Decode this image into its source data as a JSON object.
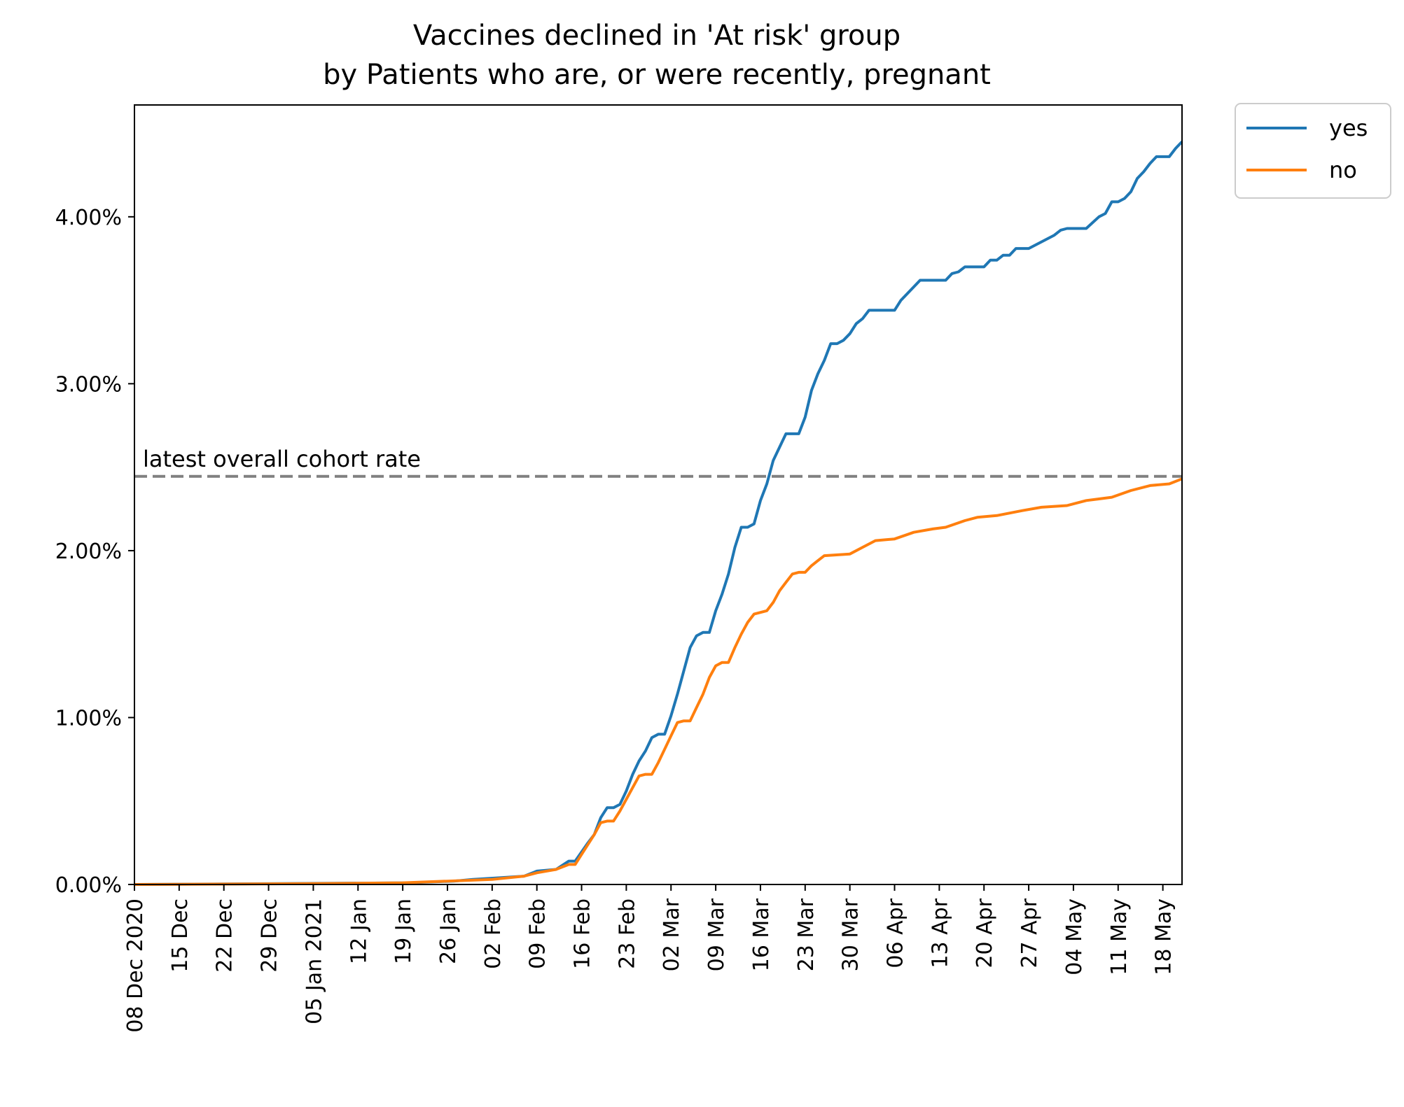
{
  "chart_data": {
    "type": "line",
    "title": [
      "Vaccines declined in 'At risk' group",
      "by Patients who are, or were recently, pregnant"
    ],
    "xlabel": "",
    "ylabel": "",
    "ylim": [
      0,
      0.0467
    ],
    "xlim": [
      "2020-12-08",
      "2021-05-21"
    ],
    "grid": false,
    "legend_position": "outside-top-right",
    "x_tick_labels": [
      "08 Dec 2020",
      "15 Dec",
      "22 Dec",
      "29 Dec",
      "05 Jan 2021",
      "12 Jan",
      "19 Jan",
      "26 Jan",
      "02 Feb",
      "09 Feb",
      "16 Feb",
      "23 Feb",
      "02 Mar",
      "09 Mar",
      "16 Mar",
      "23 Mar",
      "30 Mar",
      "06 Apr",
      "13 Apr",
      "20 Apr",
      "27 Apr",
      "04 May",
      "11 May",
      "18 May"
    ],
    "x_tick_dates": [
      "2020-12-08",
      "2020-12-15",
      "2020-12-22",
      "2020-12-29",
      "2021-01-05",
      "2021-01-12",
      "2021-01-19",
      "2021-01-26",
      "2021-02-02",
      "2021-02-09",
      "2021-02-16",
      "2021-02-23",
      "2021-03-02",
      "2021-03-09",
      "2021-03-16",
      "2021-03-23",
      "2021-03-30",
      "2021-04-06",
      "2021-04-13",
      "2021-04-20",
      "2021-04-27",
      "2021-05-04",
      "2021-05-11",
      "2021-05-18"
    ],
    "y_ticks": [
      0,
      0.01,
      0.02,
      0.03,
      0.04
    ],
    "y_tick_labels": [
      "0.00%",
      "1.00%",
      "2.00%",
      "3.00%",
      "4.00%"
    ],
    "reference_line": {
      "y": 0.02445,
      "label": "latest overall cohort rate",
      "color": "#808080"
    },
    "series": [
      {
        "name": "yes",
        "color": "#1f77b4",
        "points": [
          [
            "2020-12-08",
            0.0
          ],
          [
            "2021-01-20",
            0.0001
          ],
          [
            "2021-01-27",
            0.0002
          ],
          [
            "2021-01-30",
            0.0003
          ],
          [
            "2021-02-03",
            0.0004
          ],
          [
            "2021-02-07",
            0.0005
          ],
          [
            "2021-02-09",
            0.0008
          ],
          [
            "2021-02-12",
            0.0009
          ],
          [
            "2021-02-14",
            0.0014
          ],
          [
            "2021-02-15",
            0.0014
          ],
          [
            "2021-02-17",
            0.0025
          ],
          [
            "2021-02-18",
            0.003
          ],
          [
            "2021-02-19",
            0.004
          ],
          [
            "2021-02-20",
            0.0046
          ],
          [
            "2021-02-21",
            0.0046
          ],
          [
            "2021-02-22",
            0.0048
          ],
          [
            "2021-02-23",
            0.0056
          ],
          [
            "2021-02-24",
            0.0066
          ],
          [
            "2021-02-25",
            0.0074
          ],
          [
            "2021-02-26",
            0.008
          ],
          [
            "2021-02-27",
            0.0088
          ],
          [
            "2021-02-28",
            0.009
          ],
          [
            "2021-03-01",
            0.009
          ],
          [
            "2021-03-02",
            0.0101
          ],
          [
            "2021-03-03",
            0.0114
          ],
          [
            "2021-03-04",
            0.0128
          ],
          [
            "2021-03-05",
            0.0142
          ],
          [
            "2021-03-06",
            0.0149
          ],
          [
            "2021-03-07",
            0.0151
          ],
          [
            "2021-03-08",
            0.0151
          ],
          [
            "2021-03-09",
            0.0164
          ],
          [
            "2021-03-10",
            0.0174
          ],
          [
            "2021-03-11",
            0.0186
          ],
          [
            "2021-03-12",
            0.0202
          ],
          [
            "2021-03-13",
            0.0214
          ],
          [
            "2021-03-14",
            0.0214
          ],
          [
            "2021-03-15",
            0.0216
          ],
          [
            "2021-03-16",
            0.023
          ],
          [
            "2021-03-17",
            0.024
          ],
          [
            "2021-03-18",
            0.0254
          ],
          [
            "2021-03-19",
            0.0262
          ],
          [
            "2021-03-20",
            0.027
          ],
          [
            "2021-03-21",
            0.027
          ],
          [
            "2021-03-22",
            0.027
          ],
          [
            "2021-03-23",
            0.028
          ],
          [
            "2021-03-24",
            0.0296
          ],
          [
            "2021-03-25",
            0.0306
          ],
          [
            "2021-03-26",
            0.0314
          ],
          [
            "2021-03-27",
            0.0324
          ],
          [
            "2021-03-28",
            0.0324
          ],
          [
            "2021-03-29",
            0.0326
          ],
          [
            "2021-03-30",
            0.033
          ],
          [
            "2021-03-31",
            0.0336
          ],
          [
            "2021-04-01",
            0.0339
          ],
          [
            "2021-04-02",
            0.0344
          ],
          [
            "2021-04-06",
            0.0344
          ],
          [
            "2021-04-07",
            0.035
          ],
          [
            "2021-04-10",
            0.0362
          ],
          [
            "2021-04-14",
            0.0362
          ],
          [
            "2021-04-15",
            0.0366
          ],
          [
            "2021-04-16",
            0.0367
          ],
          [
            "2021-04-17",
            0.037
          ],
          [
            "2021-04-20",
            0.037
          ],
          [
            "2021-04-21",
            0.0374
          ],
          [
            "2021-04-22",
            0.0374
          ],
          [
            "2021-04-23",
            0.0377
          ],
          [
            "2021-04-24",
            0.0377
          ],
          [
            "2021-04-25",
            0.0381
          ],
          [
            "2021-04-27",
            0.0381
          ],
          [
            "2021-05-01",
            0.0389
          ],
          [
            "2021-05-02",
            0.0392
          ],
          [
            "2021-05-03",
            0.0393
          ],
          [
            "2021-05-06",
            0.0393
          ],
          [
            "2021-05-08",
            0.04
          ],
          [
            "2021-05-09",
            0.0402
          ],
          [
            "2021-05-10",
            0.0409
          ],
          [
            "2021-05-11",
            0.0409
          ],
          [
            "2021-05-12",
            0.0411
          ],
          [
            "2021-05-13",
            0.0415
          ],
          [
            "2021-05-14",
            0.0423
          ],
          [
            "2021-05-15",
            0.0427
          ],
          [
            "2021-05-16",
            0.0432
          ],
          [
            "2021-05-17",
            0.0436
          ],
          [
            "2021-05-19",
            0.0436
          ],
          [
            "2021-05-20",
            0.0441
          ],
          [
            "2021-05-21",
            0.0445
          ]
        ]
      },
      {
        "name": "no",
        "color": "#ff7f0e",
        "points": [
          [
            "2020-12-08",
            0.0
          ],
          [
            "2021-01-05",
            5e-05
          ],
          [
            "2021-01-19",
            0.0001
          ],
          [
            "2021-01-26",
            0.0002
          ],
          [
            "2021-02-02",
            0.0003
          ],
          [
            "2021-02-07",
            0.0005
          ],
          [
            "2021-02-09",
            0.0007
          ],
          [
            "2021-02-12",
            0.0009
          ],
          [
            "2021-02-14",
            0.0012
          ],
          [
            "2021-02-15",
            0.0012
          ],
          [
            "2021-02-16",
            0.0018
          ],
          [
            "2021-02-17",
            0.0024
          ],
          [
            "2021-02-18",
            0.003
          ],
          [
            "2021-02-19",
            0.0037
          ],
          [
            "2021-02-20",
            0.0038
          ],
          [
            "2021-02-21",
            0.0038
          ],
          [
            "2021-02-22",
            0.0044
          ],
          [
            "2021-02-23",
            0.0051
          ],
          [
            "2021-02-24",
            0.0058
          ],
          [
            "2021-02-25",
            0.0065
          ],
          [
            "2021-02-26",
            0.0066
          ],
          [
            "2021-02-27",
            0.0066
          ],
          [
            "2021-02-28",
            0.0073
          ],
          [
            "2021-03-01",
            0.0081
          ],
          [
            "2021-03-02",
            0.0089
          ],
          [
            "2021-03-03",
            0.0097
          ],
          [
            "2021-03-04",
            0.0098
          ],
          [
            "2021-03-05",
            0.0098
          ],
          [
            "2021-03-06",
            0.0106
          ],
          [
            "2021-03-07",
            0.0114
          ],
          [
            "2021-03-08",
            0.0124
          ],
          [
            "2021-03-09",
            0.0131
          ],
          [
            "2021-03-10",
            0.0133
          ],
          [
            "2021-03-11",
            0.0133
          ],
          [
            "2021-03-12",
            0.0142
          ],
          [
            "2021-03-13",
            0.015
          ],
          [
            "2021-03-14",
            0.0157
          ],
          [
            "2021-03-15",
            0.0162
          ],
          [
            "2021-03-16",
            0.0163
          ],
          [
            "2021-03-17",
            0.0164
          ],
          [
            "2021-03-18",
            0.0169
          ],
          [
            "2021-03-19",
            0.0176
          ],
          [
            "2021-03-20",
            0.0181
          ],
          [
            "2021-03-21",
            0.0186
          ],
          [
            "2021-03-22",
            0.0187
          ],
          [
            "2021-03-23",
            0.0187
          ],
          [
            "2021-03-24",
            0.0191
          ],
          [
            "2021-03-25",
            0.0194
          ],
          [
            "2021-03-26",
            0.0197
          ],
          [
            "2021-03-30",
            0.0198
          ],
          [
            "2021-04-01",
            0.0202
          ],
          [
            "2021-04-03",
            0.0206
          ],
          [
            "2021-04-06",
            0.0207
          ],
          [
            "2021-04-09",
            0.0211
          ],
          [
            "2021-04-12",
            0.0213
          ],
          [
            "2021-04-14",
            0.0214
          ],
          [
            "2021-04-17",
            0.0218
          ],
          [
            "2021-04-19",
            0.022
          ],
          [
            "2021-04-22",
            0.0221
          ],
          [
            "2021-04-26",
            0.0224
          ],
          [
            "2021-04-29",
            0.0226
          ],
          [
            "2021-05-03",
            0.0227
          ],
          [
            "2021-05-06",
            0.023
          ],
          [
            "2021-05-08",
            0.0231
          ],
          [
            "2021-05-10",
            0.0232
          ],
          [
            "2021-05-13",
            0.0236
          ],
          [
            "2021-05-16",
            0.0239
          ],
          [
            "2021-05-19",
            0.024
          ],
          [
            "2021-05-21",
            0.0243
          ]
        ]
      }
    ]
  }
}
